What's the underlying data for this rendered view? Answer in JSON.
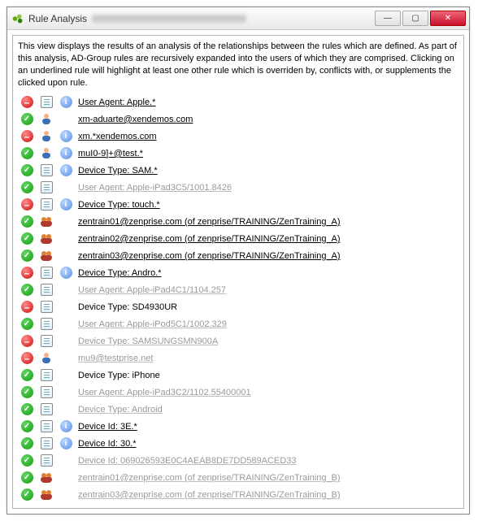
{
  "window": {
    "title": "Rule Analysis"
  },
  "description": "This view displays the results of an analysis of the relationships between the rules which are defined. As part of this analysis, AD-Group rules are recursively expanded into the users of which they are comprised. Clicking on an underlined rule will highlight at least one other rule which is overriden by, conflicts with, or supplements the clicked upon rule.",
  "rows": [
    {
      "status": "deny",
      "type": "note",
      "info": true,
      "label": "User Agent: Apple.*",
      "style": "underline"
    },
    {
      "status": "allow",
      "type": "user",
      "info": false,
      "label": "xm-aduarte@xendemos.com",
      "style": "underline"
    },
    {
      "status": "deny",
      "type": "user",
      "info": true,
      "label": "xm.*xendemos.com",
      "style": "underline"
    },
    {
      "status": "allow",
      "type": "user",
      "info": true,
      "label": "muI0-9]+@test.*",
      "style": "underline"
    },
    {
      "status": "allow",
      "type": "note",
      "info": true,
      "label": "Device Type: SAM.*",
      "style": "underline"
    },
    {
      "status": "allow",
      "type": "note",
      "info": false,
      "label": "User Agent: Apple-iPad3C5/1001.8426",
      "style": "dim underline"
    },
    {
      "status": "deny",
      "type": "note",
      "info": true,
      "label": "Device Type: touch.*",
      "style": "underline"
    },
    {
      "status": "allow",
      "type": "group",
      "info": false,
      "label": "zentrain01@zenprise.com (of zenprise/TRAINING/ZenTraining_A)",
      "style": "underline"
    },
    {
      "status": "allow",
      "type": "group",
      "info": false,
      "label": "zentrain02@zenprise.com (of zenprise/TRAINING/ZenTraining_A)",
      "style": "underline"
    },
    {
      "status": "allow",
      "type": "group",
      "info": false,
      "label": "zentrain03@zenprise.com (of zenprise/TRAINING/ZenTraining_A)",
      "style": "underline"
    },
    {
      "status": "deny",
      "type": "note",
      "info": true,
      "label": "Device Type: Andro.*",
      "style": "underline"
    },
    {
      "status": "allow",
      "type": "note",
      "info": false,
      "label": "User Agent: Apple-iPad4C1/1104.257",
      "style": "dim underline"
    },
    {
      "status": "deny",
      "type": "note",
      "info": false,
      "label": "Device Type: SD4930UR",
      "style": ""
    },
    {
      "status": "allow",
      "type": "note",
      "info": false,
      "label": "User Agent: Apple-iPod5C1/1002.329",
      "style": "dim underline"
    },
    {
      "status": "deny",
      "type": "note",
      "info": false,
      "label": "Device Type: SAMSUNGSMN900A",
      "style": "dim underline"
    },
    {
      "status": "deny",
      "type": "user",
      "info": false,
      "label": "mu9@testprise.net",
      "style": "dim underline"
    },
    {
      "status": "allow",
      "type": "note",
      "info": false,
      "label": "Device Type: iPhone",
      "style": ""
    },
    {
      "status": "allow",
      "type": "note",
      "info": false,
      "label": "User Agent: Apple-iPad3C2/1102.55400001",
      "style": "dim underline"
    },
    {
      "status": "allow",
      "type": "note",
      "info": false,
      "label": "Device Type: Android",
      "style": "dim underline"
    },
    {
      "status": "allow",
      "type": "note",
      "info": true,
      "label": "Device Id: 3E.*",
      "style": "underline"
    },
    {
      "status": "allow",
      "type": "note",
      "info": true,
      "label": "Device Id: 30.*",
      "style": "underline"
    },
    {
      "status": "allow",
      "type": "note",
      "info": false,
      "label": "Device Id: 069026593E0C4AEAB8DE7DD589ACED33",
      "style": "dim underline"
    },
    {
      "status": "allow",
      "type": "group",
      "info": false,
      "label": "zentrain01@zenprise.com (of zenprise/TRAINING/ZenTraining_B)",
      "style": "dim underline"
    },
    {
      "status": "allow",
      "type": "group",
      "info": false,
      "label": "zentrain03@zenprise.com (of zenprise/TRAINING/ZenTraining_B)",
      "style": "dim underline"
    }
  ]
}
